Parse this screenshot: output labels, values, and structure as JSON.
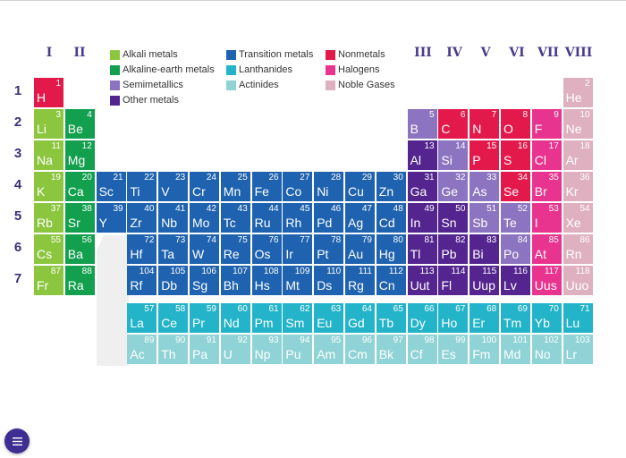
{
  "colors": {
    "alkali": "#8cc63f",
    "alkaline": "#13a04e",
    "semimetal": "#8c74c0",
    "other": "#54258f",
    "transition": "#1f63b0",
    "lanthanide": "#24b4c9",
    "actinide": "#8fd3d6",
    "nonmetal": "#e4194b",
    "halogen": "#e9348f",
    "noble": "#dfb1c0",
    "label": "#4a3a8a",
    "fab": "#3e2d92"
  },
  "group_labels": [
    "I",
    "II",
    "III",
    "IV",
    "V",
    "VI",
    "VII",
    "VIII"
  ],
  "period_labels": [
    "1",
    "2",
    "3",
    "4",
    "5",
    "6",
    "7"
  ],
  "legend": [
    {
      "label": "Alkali metals",
      "cat": "alkali"
    },
    {
      "label": "Alkaline-earth metals",
      "cat": "alkaline"
    },
    {
      "label": "Semimetallics",
      "cat": "semimetal"
    },
    {
      "label": "Other metals",
      "cat": "other"
    },
    {
      "label": "Transition metals",
      "cat": "transition"
    },
    {
      "label": "Lanthanides",
      "cat": "lanthanide"
    },
    {
      "label": "Actinides",
      "cat": "actinide"
    },
    {
      "label": "Nonmetals",
      "cat": "nonmetal"
    },
    {
      "label": "Halogens",
      "cat": "halogen"
    },
    {
      "label": "Noble Gases",
      "cat": "noble"
    }
  ],
  "elements": [
    {
      "n": 1,
      "s": "H",
      "r": 1,
      "c": 1,
      "cat": "nonmetal"
    },
    {
      "n": 2,
      "s": "He",
      "r": 1,
      "c": 18,
      "cat": "noble"
    },
    {
      "n": 3,
      "s": "Li",
      "r": 2,
      "c": 1,
      "cat": "alkali"
    },
    {
      "n": 4,
      "s": "Be",
      "r": 2,
      "c": 2,
      "cat": "alkaline"
    },
    {
      "n": 5,
      "s": "B",
      "r": 2,
      "c": 13,
      "cat": "semimetal"
    },
    {
      "n": 6,
      "s": "C",
      "r": 2,
      "c": 14,
      "cat": "nonmetal"
    },
    {
      "n": 7,
      "s": "N",
      "r": 2,
      "c": 15,
      "cat": "nonmetal"
    },
    {
      "n": 8,
      "s": "O",
      "r": 2,
      "c": 16,
      "cat": "nonmetal"
    },
    {
      "n": 9,
      "s": "F",
      "r": 2,
      "c": 17,
      "cat": "halogen"
    },
    {
      "n": 10,
      "s": "Ne",
      "r": 2,
      "c": 18,
      "cat": "noble"
    },
    {
      "n": 11,
      "s": "Na",
      "r": 3,
      "c": 1,
      "cat": "alkali"
    },
    {
      "n": 12,
      "s": "Mg",
      "r": 3,
      "c": 2,
      "cat": "alkaline"
    },
    {
      "n": 13,
      "s": "Al",
      "r": 3,
      "c": 13,
      "cat": "other"
    },
    {
      "n": 14,
      "s": "Si",
      "r": 3,
      "c": 14,
      "cat": "semimetal"
    },
    {
      "n": 15,
      "s": "P",
      "r": 3,
      "c": 15,
      "cat": "nonmetal"
    },
    {
      "n": 16,
      "s": "S",
      "r": 3,
      "c": 16,
      "cat": "nonmetal"
    },
    {
      "n": 17,
      "s": "Cl",
      "r": 3,
      "c": 17,
      "cat": "halogen"
    },
    {
      "n": 18,
      "s": "Ar",
      "r": 3,
      "c": 18,
      "cat": "noble"
    },
    {
      "n": 19,
      "s": "K",
      "r": 4,
      "c": 1,
      "cat": "alkali"
    },
    {
      "n": 20,
      "s": "Ca",
      "r": 4,
      "c": 2,
      "cat": "alkaline"
    },
    {
      "n": 21,
      "s": "Sc",
      "r": 4,
      "c": 3,
      "cat": "transition"
    },
    {
      "n": 22,
      "s": "Ti",
      "r": 4,
      "c": 4,
      "cat": "transition"
    },
    {
      "n": 23,
      "s": "V",
      "r": 4,
      "c": 5,
      "cat": "transition"
    },
    {
      "n": 24,
      "s": "Cr",
      "r": 4,
      "c": 6,
      "cat": "transition"
    },
    {
      "n": 25,
      "s": "Mn",
      "r": 4,
      "c": 7,
      "cat": "transition"
    },
    {
      "n": 26,
      "s": "Fe",
      "r": 4,
      "c": 8,
      "cat": "transition"
    },
    {
      "n": 27,
      "s": "Co",
      "r": 4,
      "c": 9,
      "cat": "transition"
    },
    {
      "n": 28,
      "s": "Ni",
      "r": 4,
      "c": 10,
      "cat": "transition"
    },
    {
      "n": 29,
      "s": "Cu",
      "r": 4,
      "c": 11,
      "cat": "transition"
    },
    {
      "n": 30,
      "s": "Zn",
      "r": 4,
      "c": 12,
      "cat": "transition"
    },
    {
      "n": 31,
      "s": "Ga",
      "r": 4,
      "c": 13,
      "cat": "other"
    },
    {
      "n": 32,
      "s": "Ge",
      "r": 4,
      "c": 14,
      "cat": "semimetal"
    },
    {
      "n": 33,
      "s": "As",
      "r": 4,
      "c": 15,
      "cat": "semimetal"
    },
    {
      "n": 34,
      "s": "Se",
      "r": 4,
      "c": 16,
      "cat": "nonmetal"
    },
    {
      "n": 35,
      "s": "Br",
      "r": 4,
      "c": 17,
      "cat": "halogen"
    },
    {
      "n": 36,
      "s": "Kr",
      "r": 4,
      "c": 18,
      "cat": "noble"
    },
    {
      "n": 37,
      "s": "Rb",
      "r": 5,
      "c": 1,
      "cat": "alkali"
    },
    {
      "n": 38,
      "s": "Sr",
      "r": 5,
      "c": 2,
      "cat": "alkaline"
    },
    {
      "n": 39,
      "s": "Y",
      "r": 5,
      "c": 3,
      "cat": "transition"
    },
    {
      "n": 40,
      "s": "Zr",
      "r": 5,
      "c": 4,
      "cat": "transition"
    },
    {
      "n": 41,
      "s": "Nb",
      "r": 5,
      "c": 5,
      "cat": "transition"
    },
    {
      "n": 42,
      "s": "Mo",
      "r": 5,
      "c": 6,
      "cat": "transition"
    },
    {
      "n": 43,
      "s": "Tc",
      "r": 5,
      "c": 7,
      "cat": "transition"
    },
    {
      "n": 44,
      "s": "Ru",
      "r": 5,
      "c": 8,
      "cat": "transition"
    },
    {
      "n": 45,
      "s": "Rh",
      "r": 5,
      "c": 9,
      "cat": "transition"
    },
    {
      "n": 46,
      "s": "Pd",
      "r": 5,
      "c": 10,
      "cat": "transition"
    },
    {
      "n": 47,
      "s": "Ag",
      "r": 5,
      "c": 11,
      "cat": "transition"
    },
    {
      "n": 48,
      "s": "Cd",
      "r": 5,
      "c": 12,
      "cat": "transition"
    },
    {
      "n": 49,
      "s": "In",
      "r": 5,
      "c": 13,
      "cat": "other"
    },
    {
      "n": 50,
      "s": "Sn",
      "r": 5,
      "c": 14,
      "cat": "other"
    },
    {
      "n": 51,
      "s": "Sb",
      "r": 5,
      "c": 15,
      "cat": "semimetal"
    },
    {
      "n": 52,
      "s": "Te",
      "r": 5,
      "c": 16,
      "cat": "semimetal"
    },
    {
      "n": 53,
      "s": "I",
      "r": 5,
      "c": 17,
      "cat": "halogen"
    },
    {
      "n": 54,
      "s": "Xe",
      "r": 5,
      "c": 18,
      "cat": "noble"
    },
    {
      "n": 55,
      "s": "Cs",
      "r": 6,
      "c": 1,
      "cat": "alkali"
    },
    {
      "n": 56,
      "s": "Ba",
      "r": 6,
      "c": 2,
      "cat": "alkaline"
    },
    {
      "n": 72,
      "s": "Hf",
      "r": 6,
      "c": 4,
      "cat": "transition"
    },
    {
      "n": 73,
      "s": "Ta",
      "r": 6,
      "c": 5,
      "cat": "transition"
    },
    {
      "n": 74,
      "s": "W",
      "r": 6,
      "c": 6,
      "cat": "transition"
    },
    {
      "n": 75,
      "s": "Re",
      "r": 6,
      "c": 7,
      "cat": "transition"
    },
    {
      "n": 76,
      "s": "Os",
      "r": 6,
      "c": 8,
      "cat": "transition"
    },
    {
      "n": 77,
      "s": "Ir",
      "r": 6,
      "c": 9,
      "cat": "transition"
    },
    {
      "n": 78,
      "s": "Pt",
      "r": 6,
      "c": 10,
      "cat": "transition"
    },
    {
      "n": 79,
      "s": "Au",
      "r": 6,
      "c": 11,
      "cat": "transition"
    },
    {
      "n": 80,
      "s": "Hg",
      "r": 6,
      "c": 12,
      "cat": "transition"
    },
    {
      "n": 81,
      "s": "Tl",
      "r": 6,
      "c": 13,
      "cat": "other"
    },
    {
      "n": 82,
      "s": "Pb",
      "r": 6,
      "c": 14,
      "cat": "other"
    },
    {
      "n": 83,
      "s": "Bi",
      "r": 6,
      "c": 15,
      "cat": "other"
    },
    {
      "n": 84,
      "s": "Po",
      "r": 6,
      "c": 16,
      "cat": "semimetal"
    },
    {
      "n": 85,
      "s": "At",
      "r": 6,
      "c": 17,
      "cat": "halogen"
    },
    {
      "n": 86,
      "s": "Rn",
      "r": 6,
      "c": 18,
      "cat": "noble"
    },
    {
      "n": 87,
      "s": "Fr",
      "r": 7,
      "c": 1,
      "cat": "alkali"
    },
    {
      "n": 88,
      "s": "Ra",
      "r": 7,
      "c": 2,
      "cat": "alkaline"
    },
    {
      "n": 104,
      "s": "Rf",
      "r": 7,
      "c": 4,
      "cat": "transition"
    },
    {
      "n": 105,
      "s": "Db",
      "r": 7,
      "c": 5,
      "cat": "transition"
    },
    {
      "n": 106,
      "s": "Sg",
      "r": 7,
      "c": 6,
      "cat": "transition"
    },
    {
      "n": 107,
      "s": "Bh",
      "r": 7,
      "c": 7,
      "cat": "transition"
    },
    {
      "n": 108,
      "s": "Hs",
      "r": 7,
      "c": 8,
      "cat": "transition"
    },
    {
      "n": 109,
      "s": "Mt",
      "r": 7,
      "c": 9,
      "cat": "transition"
    },
    {
      "n": 110,
      "s": "Ds",
      "r": 7,
      "c": 10,
      "cat": "transition"
    },
    {
      "n": 111,
      "s": "Rg",
      "r": 7,
      "c": 11,
      "cat": "transition"
    },
    {
      "n": 112,
      "s": "Cn",
      "r": 7,
      "c": 12,
      "cat": "transition"
    },
    {
      "n": 113,
      "s": "Uut",
      "r": 7,
      "c": 13,
      "cat": "other"
    },
    {
      "n": 114,
      "s": "Fl",
      "r": 7,
      "c": 14,
      "cat": "other"
    },
    {
      "n": 115,
      "s": "Uup",
      "r": 7,
      "c": 15,
      "cat": "other"
    },
    {
      "n": 116,
      "s": "Lv",
      "r": 7,
      "c": 16,
      "cat": "other"
    },
    {
      "n": 117,
      "s": "Uus",
      "r": 7,
      "c": 17,
      "cat": "halogen"
    },
    {
      "n": 118,
      "s": "Uuo",
      "r": 7,
      "c": 18,
      "cat": "noble"
    },
    {
      "n": 57,
      "s": "La",
      "r": 8,
      "c": 4,
      "cat": "lanthanide"
    },
    {
      "n": 58,
      "s": "Ce",
      "r": 8,
      "c": 5,
      "cat": "lanthanide"
    },
    {
      "n": 59,
      "s": "Pr",
      "r": 8,
      "c": 6,
      "cat": "lanthanide"
    },
    {
      "n": 60,
      "s": "Nd",
      "r": 8,
      "c": 7,
      "cat": "lanthanide"
    },
    {
      "n": 61,
      "s": "Pm",
      "r": 8,
      "c": 8,
      "cat": "lanthanide"
    },
    {
      "n": 62,
      "s": "Sm",
      "r": 8,
      "c": 9,
      "cat": "lanthanide"
    },
    {
      "n": 63,
      "s": "Eu",
      "r": 8,
      "c": 10,
      "cat": "lanthanide"
    },
    {
      "n": 64,
      "s": "Gd",
      "r": 8,
      "c": 11,
      "cat": "lanthanide"
    },
    {
      "n": 65,
      "s": "Tb",
      "r": 8,
      "c": 12,
      "cat": "lanthanide"
    },
    {
      "n": 66,
      "s": "Dy",
      "r": 8,
      "c": 13,
      "cat": "lanthanide"
    },
    {
      "n": 67,
      "s": "Ho",
      "r": 8,
      "c": 14,
      "cat": "lanthanide"
    },
    {
      "n": 68,
      "s": "Er",
      "r": 8,
      "c": 15,
      "cat": "lanthanide"
    },
    {
      "n": 69,
      "s": "Tm",
      "r": 8,
      "c": 16,
      "cat": "lanthanide"
    },
    {
      "n": 70,
      "s": "Yb",
      "r": 8,
      "c": 17,
      "cat": "lanthanide"
    },
    {
      "n": 71,
      "s": "Lu",
      "r": 8,
      "c": 18,
      "cat": "lanthanide"
    },
    {
      "n": 89,
      "s": "Ac",
      "r": 9,
      "c": 4,
      "cat": "actinide"
    },
    {
      "n": 90,
      "s": "Th",
      "r": 9,
      "c": 5,
      "cat": "actinide"
    },
    {
      "n": 91,
      "s": "Pa",
      "r": 9,
      "c": 6,
      "cat": "actinide"
    },
    {
      "n": 92,
      "s": "U",
      "r": 9,
      "c": 7,
      "cat": "actinide"
    },
    {
      "n": 93,
      "s": "Np",
      "r": 9,
      "c": 8,
      "cat": "actinide"
    },
    {
      "n": 94,
      "s": "Pu",
      "r": 9,
      "c": 9,
      "cat": "actinide"
    },
    {
      "n": 95,
      "s": "Am",
      "r": 9,
      "c": 10,
      "cat": "actinide"
    },
    {
      "n": 96,
      "s": "Cm",
      "r": 9,
      "c": 11,
      "cat": "actinide"
    },
    {
      "n": 97,
      "s": "Bk",
      "r": 9,
      "c": 12,
      "cat": "actinide"
    },
    {
      "n": 98,
      "s": "Cf",
      "r": 9,
      "c": 13,
      "cat": "actinide"
    },
    {
      "n": 99,
      "s": "Es",
      "r": 9,
      "c": 14,
      "cat": "actinide"
    },
    {
      "n": 100,
      "s": "Fm",
      "r": 9,
      "c": 15,
      "cat": "actinide"
    },
    {
      "n": 101,
      "s": "Md",
      "r": 9,
      "c": 16,
      "cat": "actinide"
    },
    {
      "n": 102,
      "s": "No",
      "r": 9,
      "c": 17,
      "cat": "actinide"
    },
    {
      "n": 103,
      "s": "Lr",
      "r": 9,
      "c": 18,
      "cat": "actinide"
    }
  ],
  "menu_button": {
    "icon": "menu-icon"
  }
}
